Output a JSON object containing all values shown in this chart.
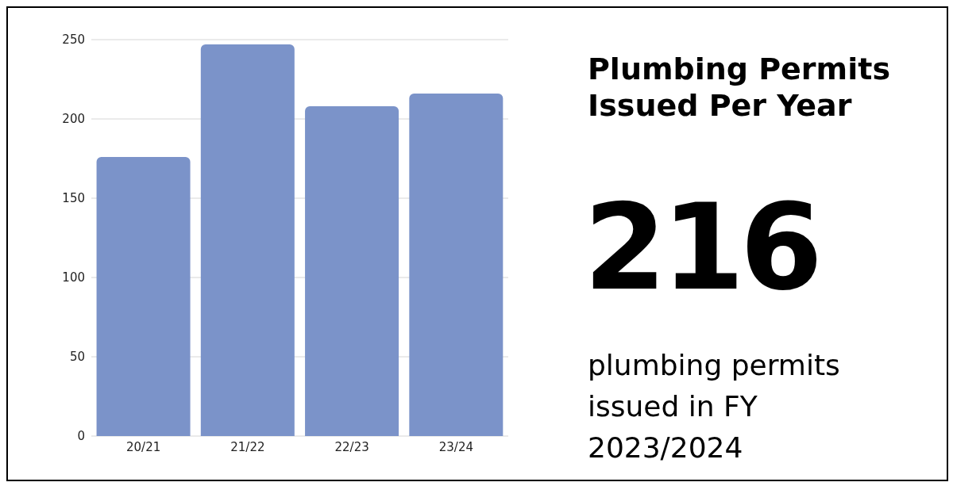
{
  "chart_data": {
    "type": "bar",
    "title": "Plumbing Permits Issued Per Year",
    "categories": [
      "20/21",
      "21/22",
      "22/23",
      "23/24"
    ],
    "values": [
      176,
      247,
      208,
      216
    ],
    "color": "#7b93c9",
    "ylim": [
      0,
      250
    ],
    "yticks": [
      0,
      50,
      100,
      150,
      200,
      250
    ],
    "grid": "y",
    "annotations": [
      "216",
      "plumbing permits issued in FY 2023/2024"
    ]
  }
}
